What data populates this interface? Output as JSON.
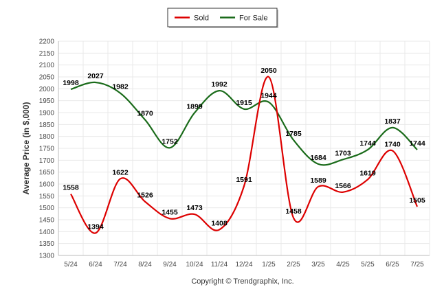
{
  "chart_data": {
    "type": "line",
    "categories": [
      "5/24",
      "6/24",
      "7/24",
      "8/24",
      "9/24",
      "10/24",
      "11/24",
      "12/24",
      "1/25",
      "2/25",
      "3/25",
      "4/25",
      "5/25",
      "6/25",
      "7/25"
    ],
    "series": [
      {
        "name": "Sold",
        "color": "#dd0000",
        "values": [
          1558,
          1394,
          1622,
          1526,
          1455,
          1473,
          1408,
          1591,
          2050,
          1458,
          1589,
          1566,
          1619,
          1740,
          1505
        ]
      },
      {
        "name": "For Sale",
        "color": "#1a6b1a",
        "values": [
          1998,
          2027,
          1982,
          1870,
          1752,
          1899,
          1992,
          1915,
          1944,
          1785,
          1684,
          1703,
          1744,
          1837,
          1744
        ]
      }
    ],
    "ylabel": "Average Price (in $,000)",
    "xlabel": "",
    "ylim": [
      1300,
      2200
    ],
    "ytick_step": 50,
    "grid": true,
    "legend_position": "top-center"
  },
  "footer": "Copyright © Trendgraphix, Inc."
}
